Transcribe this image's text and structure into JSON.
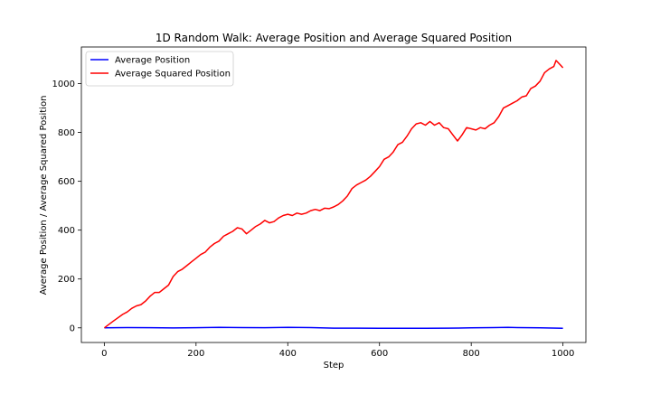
{
  "chart_data": {
    "type": "line",
    "title": "1D Random Walk: Average Position and Average Squared Position",
    "xlabel": "Step",
    "ylabel": "Average Position / Average Squared Position",
    "xlim": [
      -50,
      1050
    ],
    "ylim": [
      -60,
      1150
    ],
    "xticks": [
      0,
      200,
      400,
      600,
      800,
      1000
    ],
    "yticks": [
      0,
      200,
      400,
      600,
      800,
      1000
    ],
    "grid": false,
    "legend_position": "top-left",
    "series": [
      {
        "name": "Average Position",
        "color": "#0000ff",
        "x": [
          0,
          50,
          100,
          150,
          200,
          250,
          300,
          350,
          400,
          450,
          500,
          550,
          600,
          650,
          700,
          750,
          800,
          850,
          880,
          900,
          950,
          1000
        ],
        "values": [
          0,
          1,
          0.5,
          -0.5,
          0.5,
          2,
          1,
          0.5,
          2,
          1,
          -1,
          -1,
          -2,
          -2,
          -2,
          -1,
          0,
          1,
          2,
          1,
          0,
          -2
        ]
      },
      {
        "name": "Average Squared Position",
        "color": "#ff0000",
        "x": [
          0,
          20,
          40,
          50,
          60,
          70,
          80,
          90,
          100,
          110,
          120,
          130,
          140,
          150,
          160,
          170,
          180,
          190,
          200,
          210,
          220,
          230,
          240,
          250,
          260,
          270,
          280,
          290,
          300,
          310,
          320,
          330,
          340,
          350,
          360,
          370,
          380,
          390,
          400,
          410,
          420,
          430,
          440,
          450,
          460,
          470,
          480,
          490,
          500,
          510,
          520,
          530,
          540,
          550,
          560,
          570,
          580,
          590,
          600,
          610,
          620,
          630,
          640,
          650,
          660,
          670,
          680,
          690,
          700,
          710,
          720,
          730,
          740,
          750,
          760,
          770,
          780,
          790,
          800,
          810,
          820,
          830,
          840,
          850,
          860,
          870,
          880,
          890,
          900,
          910,
          920,
          930,
          940,
          950,
          960,
          970,
          980,
          985,
          990,
          995,
          1000
        ],
        "values": [
          0,
          28,
          55,
          65,
          80,
          90,
          95,
          110,
          130,
          145,
          145,
          160,
          175,
          210,
          230,
          240,
          255,
          270,
          285,
          300,
          310,
          330,
          345,
          355,
          375,
          385,
          395,
          410,
          405,
          385,
          400,
          415,
          425,
          440,
          430,
          435,
          450,
          460,
          465,
          460,
          470,
          465,
          470,
          480,
          485,
          480,
          490,
          488,
          495,
          505,
          520,
          540,
          570,
          585,
          595,
          605,
          620,
          640,
          660,
          690,
          700,
          720,
          750,
          760,
          785,
          815,
          835,
          840,
          830,
          845,
          830,
          840,
          820,
          815,
          790,
          765,
          790,
          820,
          815,
          810,
          820,
          815,
          830,
          840,
          865,
          900,
          910,
          920,
          930,
          945,
          950,
          980,
          990,
          1010,
          1045,
          1060,
          1070,
          1095,
          1085,
          1075,
          1065
        ]
      }
    ]
  }
}
